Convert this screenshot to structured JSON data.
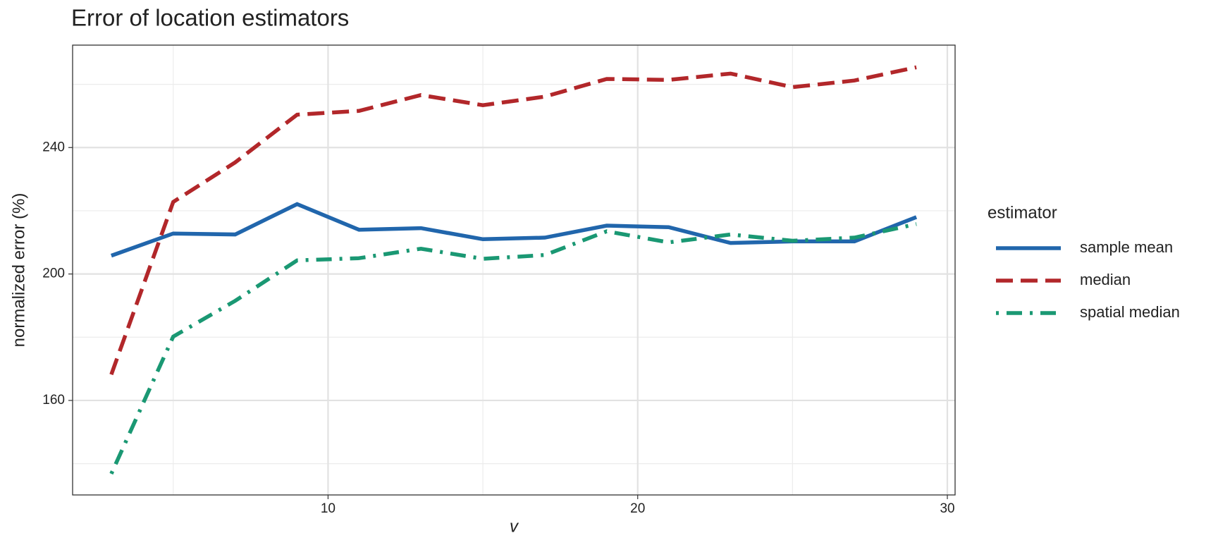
{
  "chart_data": {
    "type": "line",
    "title": "Error of location estimators",
    "x_label": "v",
    "y_label": "normalized error (%)",
    "legend_title": "estimator",
    "x": [
      3,
      5,
      7,
      9,
      11,
      13,
      15,
      17,
      19,
      21,
      23,
      25,
      27,
      29
    ],
    "series": [
      {
        "name": "sample mean",
        "color": "#2166ac",
        "linetype": "solid",
        "values": [
          205.8,
          212.8,
          212.5,
          222.1,
          214.0,
          214.5,
          211.0,
          211.5,
          215.3,
          214.8,
          209.8,
          210.3,
          210.3,
          218.0
        ]
      },
      {
        "name": "median",
        "color": "#b2272a",
        "linetype": "dashed",
        "values": [
          168.2,
          222.8,
          235.3,
          250.4,
          251.6,
          256.6,
          253.4,
          256.1,
          261.7,
          261.4,
          263.4,
          259.1,
          261.2,
          265.4
        ]
      },
      {
        "name": "spatial median",
        "color": "#1a9873",
        "linetype": "dotdash",
        "values": [
          136.8,
          180.2,
          191.5,
          204.3,
          205.0,
          208.0,
          204.8,
          206.0,
          213.5,
          210.0,
          212.5,
          210.5,
          211.5,
          215.8
        ]
      }
    ],
    "xlim": [
      1.75,
      30.25
    ],
    "ylim": [
      130.1,
      272.4
    ],
    "xticks": [
      10,
      20,
      30
    ],
    "yticks": [
      160,
      200,
      240
    ],
    "grid": true,
    "legend": "right"
  }
}
